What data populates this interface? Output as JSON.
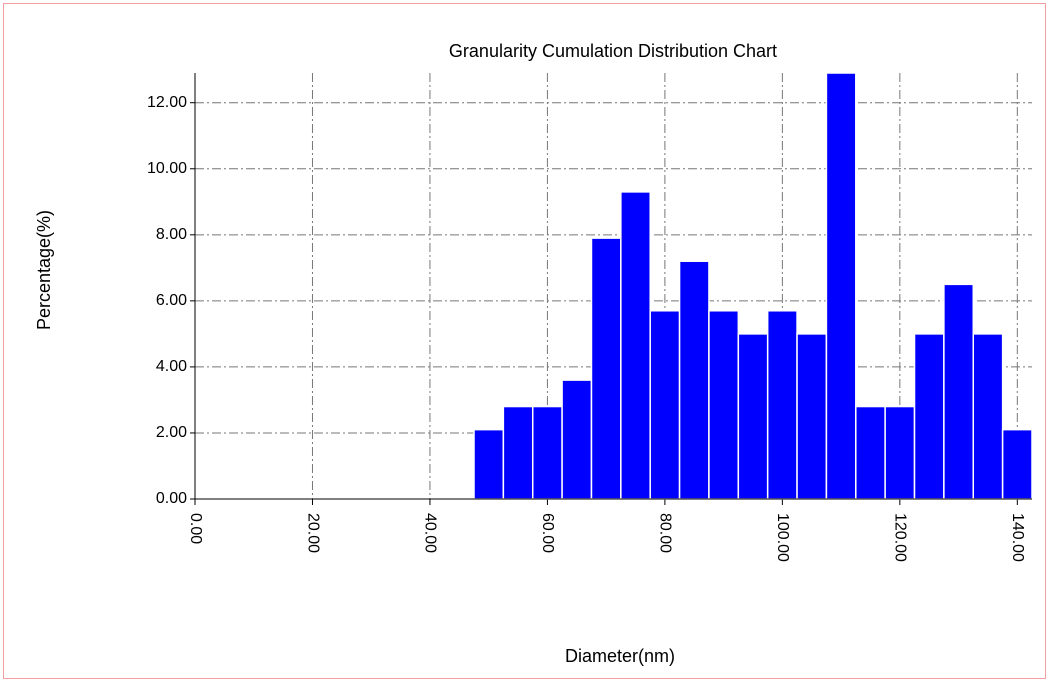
{
  "chart_data": {
    "type": "histogram",
    "title": "Granularity Cumulation Distribution  Chart",
    "x_label": "Diameter(nm)",
    "y_label": "Percentage(%)",
    "bins": [
      47.5,
      52.5,
      57.5,
      62.5,
      67.5,
      72.5,
      77.5,
      82.5,
      87.5,
      92.5,
      97.5,
      102.5,
      107.5,
      112.5,
      117.5,
      122.5,
      127.5,
      132.5,
      137.5,
      142.5
    ],
    "values": [
      2.1,
      2.8,
      2.8,
      3.6,
      7.9,
      9.3,
      5.7,
      7.2,
      5.7,
      5.0,
      5.7,
      5.0,
      12.9,
      2.8,
      2.8,
      5.0,
      6.5,
      5.0,
      2.1
    ],
    "color": "#0000ff",
    "xlim": [
      0,
      142.5
    ],
    "xticks": [
      {
        "value": 0,
        "label": "0.00"
      },
      {
        "value": 20,
        "label": "20.00"
      },
      {
        "value": 40,
        "label": "40.00"
      },
      {
        "value": 60,
        "label": "60.00"
      },
      {
        "value": 80,
        "label": "80.00"
      },
      {
        "value": 100,
        "label": "100.00"
      },
      {
        "value": 120,
        "label": "120.00"
      },
      {
        "value": 140,
        "label": "140.00"
      }
    ],
    "ylim": [
      0,
      12.9
    ],
    "yticks": [
      {
        "value": 0,
        "label": "0.00"
      },
      {
        "value": 2,
        "label": "2.00"
      },
      {
        "value": 4,
        "label": "4.00"
      },
      {
        "value": 6,
        "label": "6.00"
      },
      {
        "value": 8,
        "label": "8.00"
      },
      {
        "value": 10,
        "label": "10.00"
      },
      {
        "value": 12,
        "label": "12.00"
      }
    ],
    "grid": true
  }
}
